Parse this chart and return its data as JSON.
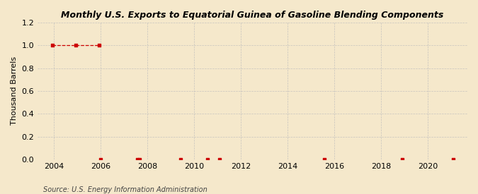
{
  "title": "Monthly U.S. Exports to Equatorial Guinea of Gasoline Blending Components",
  "ylabel": "Thousand Barrels",
  "source": "Source: U.S. Energy Information Administration",
  "background_color": "#f5e8cb",
  "plot_background_color": "#f5e8cb",
  "line_color": "#cc0000",
  "marker_color": "#cc0000",
  "grid_color": "#bbbbbb",
  "ylim": [
    0,
    1.2
  ],
  "yticks": [
    0.0,
    0.2,
    0.4,
    0.6,
    0.8,
    1.0,
    1.2
  ],
  "xlim_start": 2003.3,
  "xlim_end": 2021.7,
  "xticks": [
    2004,
    2006,
    2008,
    2010,
    2012,
    2014,
    2016,
    2018,
    2020
  ],
  "data_points": [
    [
      2003.92,
      1.0
    ],
    [
      2004.92,
      1.0
    ],
    [
      2005.92,
      1.0
    ],
    [
      2006.0,
      0.0
    ],
    [
      2007.58,
      0.0
    ],
    [
      2007.67,
      0.0
    ],
    [
      2009.42,
      0.0
    ],
    [
      2010.58,
      0.0
    ],
    [
      2011.08,
      0.0
    ],
    [
      2015.58,
      0.0
    ],
    [
      2018.92,
      0.0
    ],
    [
      2021.08,
      0.0
    ]
  ]
}
